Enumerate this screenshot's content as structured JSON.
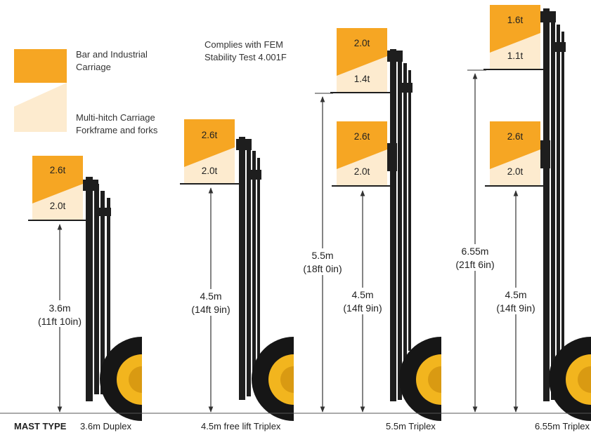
{
  "colors": {
    "orange": "#F6A623",
    "cream": "#FDEBCF",
    "mast": "#1E1E1E",
    "tyre": "#161616",
    "hub": "#F2B51E",
    "line": "#333333"
  },
  "legend": {
    "items": [
      {
        "label_line1": "Bar and Industrial",
        "label_line2": "Carriage"
      },
      {
        "label_line1": "Multi-hitch Carriage",
        "label_line2": "Forkframe and forks"
      }
    ]
  },
  "note": {
    "line1": "Complies with FEM",
    "line2": "Stability Test 4.001F"
  },
  "footer": {
    "prefix": "MAST TYPE",
    "types": [
      "3.6m Duplex",
      "4.5m free lift Triplex",
      "5.5m Triplex",
      "6.55m Triplex"
    ]
  },
  "masts": [
    {
      "name": "3.6m Duplex",
      "lower": {
        "top": "2.6t",
        "bottom": "2.0t"
      },
      "height": {
        "m": "3.6m",
        "imperial": "(11ft 10in)"
      }
    },
    {
      "name": "4.5m free lift Triplex",
      "lower": {
        "top": "2.6t",
        "bottom": "2.0t"
      },
      "height": {
        "m": "4.5m",
        "imperial": "(14ft 9in)"
      }
    },
    {
      "name": "5.5m Triplex",
      "upper": {
        "top": "2.0t",
        "bottom": "1.4t"
      },
      "lower": {
        "top": "2.6t",
        "bottom": "2.0t"
      },
      "height_max": {
        "m": "5.5m",
        "imperial": "(18ft 0in)"
      },
      "height": {
        "m": "4.5m",
        "imperial": "(14ft 9in)"
      }
    },
    {
      "name": "6.55m Triplex",
      "upper": {
        "top": "1.6t",
        "bottom": "1.1t"
      },
      "lower": {
        "top": "2.6t",
        "bottom": "2.0t"
      },
      "height_max": {
        "m": "6.55m",
        "imperial": "(21ft 6in)"
      },
      "height": {
        "m": "4.5m",
        "imperial": "(14ft 9in)"
      }
    }
  ]
}
